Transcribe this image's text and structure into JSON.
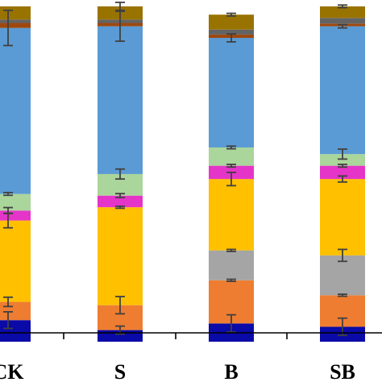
{
  "chart_data": {
    "type": "bar",
    "stacked": true,
    "categories": [
      "CK",
      "S",
      "B",
      "SB"
    ],
    "ylim": [
      0,
      100
    ],
    "grid": false,
    "title": "",
    "xlabel": "",
    "ylabel": "",
    "series": [
      {
        "color": "#0a0aa8",
        "values": [
          6.5,
          3.5,
          5.5,
          4.5
        ],
        "errors": [
          2.5,
          1.2,
          2.6,
          2.6
        ]
      },
      {
        "color": "#ee7d31",
        "values": [
          5.5,
          7.5,
          13.0,
          9.5
        ],
        "errors": [
          1.4,
          2.6,
          0.3,
          0.3
        ]
      },
      {
        "color": "#a5a5a5",
        "values": [
          0,
          0,
          9.0,
          12.0
        ],
        "errors": [
          0,
          0,
          0.3,
          1.8
        ]
      },
      {
        "color": "#ffc000",
        "values": [
          24.5,
          29.5,
          21.5,
          23.0
        ],
        "errors": [
          2.2,
          0.3,
          2.0,
          0.9
        ]
      },
      {
        "color": "#e535c8",
        "values": [
          3.0,
          3.5,
          4.0,
          4.0
        ],
        "errors": [
          0.9,
          0.6,
          0.4,
          0.4
        ]
      },
      {
        "color": "#aad59b",
        "values": [
          5.0,
          6.5,
          5.5,
          3.5
        ],
        "errors": [
          0.4,
          1.5,
          0.4,
          1.5
        ]
      },
      {
        "color": "#5b9bd5",
        "values": [
          50.0,
          44.5,
          33.0,
          38.5
        ],
        "errors": [
          5.3,
          4.5,
          1.2,
          0.5
        ]
      },
      {
        "color": "#9e480e",
        "values": [
          1.5,
          1.0,
          1.0,
          0.8
        ],
        "errors": [
          0,
          0,
          0,
          0
        ]
      },
      {
        "color": "#636363",
        "values": [
          1.0,
          1.0,
          1.5,
          1.7
        ],
        "errors": [
          0,
          0,
          0,
          0
        ]
      },
      {
        "color": "#997300",
        "values": [
          4.0,
          4.0,
          4.5,
          3.5
        ],
        "errors": [
          0,
          1.2,
          0.4,
          0.4
        ]
      }
    ]
  }
}
